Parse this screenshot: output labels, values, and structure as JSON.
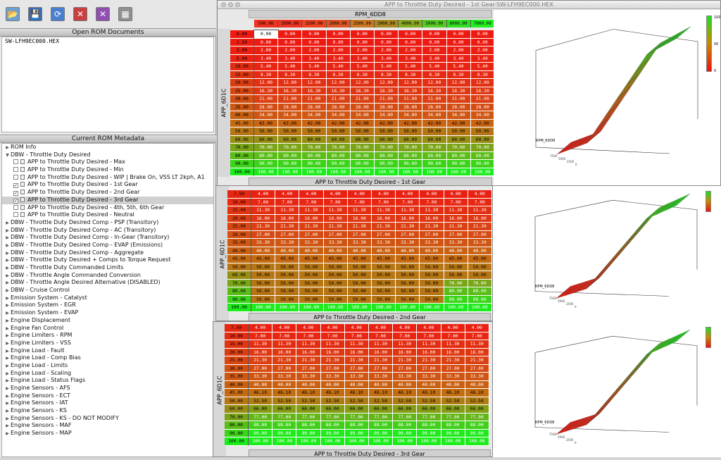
{
  "left_panel": {
    "toolbar": [
      {
        "name": "open-rom-icon",
        "glyph": "📂",
        "color": "#6ea0d0"
      },
      {
        "name": "save-rom-icon",
        "glyph": "💾",
        "color": "#3a6cb8"
      },
      {
        "name": "refresh-icon",
        "glyph": "⟳",
        "color": "#4a7fd0"
      },
      {
        "name": "close-rom-icon",
        "glyph": "✕",
        "color": "#c84040"
      },
      {
        "name": "close-all-icon",
        "glyph": "✕",
        "color": "#9050b0"
      },
      {
        "name": "chip-icon",
        "glyph": "▦",
        "color": "#909090"
      }
    ],
    "open_header": "Open ROM Documents",
    "open_files": [
      "SW-LFH9EC000.HEX"
    ],
    "meta_header": "Current ROM Metadata",
    "tree": [
      {
        "label": "ROM Info",
        "level": 0,
        "tw": "▶"
      },
      {
        "label": "DBW - Throttle Duty Desired",
        "level": 0,
        "tw": "▼"
      },
      {
        "label": "APP to Throttle Duty Desired - Max",
        "level": 1,
        "ck": ""
      },
      {
        "label": "APP to Throttle Duty Desired - Min",
        "level": 1,
        "ck": ""
      },
      {
        "label": "APP to Throttle Duty Desired - WIP | Brake On, VSS LT 2kph, A1",
        "level": 1,
        "ck": ""
      },
      {
        "label": "APP to Throttle Duty Desired - 1st Gear",
        "level": 1,
        "ck": "✓"
      },
      {
        "label": "APP to Throttle Duty Desired - 2nd Gear",
        "level": 1,
        "ck": "✓"
      },
      {
        "label": "APP to Throttle Duty Desired - 3rd Gear",
        "level": 1,
        "ck": "✓",
        "sel": true
      },
      {
        "label": "APP to Throttle Duty Desired - 4th, 5th, 6th Gear",
        "level": 1,
        "ck": ""
      },
      {
        "label": "APP to Throttle Duty Desired - Neutral",
        "level": 1,
        "ck": ""
      },
      {
        "label": "DBW - Throttle Duty Desired Comp - PSP (Transitory)",
        "level": 0,
        "tw": "▶"
      },
      {
        "label": "DBW - Throttle Duty Desired Comp - AC (Transitory)",
        "level": 0,
        "tw": "▶"
      },
      {
        "label": "DBW - Throttle Duty Desired Comp - In-Gear (Transitory)",
        "level": 0,
        "tw": "▶"
      },
      {
        "label": "DBW - Throttle Duty Desired Comp - EVAP (Emissions)",
        "level": 0,
        "tw": "▶"
      },
      {
        "label": "DBW - Throttle Duty Desired Comp - Aggregate",
        "level": 0,
        "tw": "▶"
      },
      {
        "label": "DBW - Throttle Duty Desired + Comps to Torque Request",
        "level": 0,
        "tw": "▶"
      },
      {
        "label": "DBW - Throttle Duty Commanded Limits",
        "level": 0,
        "tw": "▶"
      },
      {
        "label": "DBW - Throttle Angle Commanded Conversion",
        "level": 0,
        "tw": "▶"
      },
      {
        "label": "DBW - Throttle Angle Desired Alternative (DISABLED)",
        "level": 0,
        "tw": "▶"
      },
      {
        "label": "DBW - Cruise Control",
        "level": 0,
        "tw": "▶"
      },
      {
        "label": "Emission System - Catalyst",
        "level": 0,
        "tw": "▶"
      },
      {
        "label": "Emission System - EGR",
        "level": 0,
        "tw": "▶"
      },
      {
        "label": "Emission System - EVAP",
        "level": 0,
        "tw": "▶"
      },
      {
        "label": "Engine Displacement",
        "level": 0,
        "tw": "▶"
      },
      {
        "label": "Engine Fan Control",
        "level": 0,
        "tw": "▶"
      },
      {
        "label": "Engine Limiters - RPM",
        "level": 0,
        "tw": "▶"
      },
      {
        "label": "Engine Limiters - VSS",
        "level": 0,
        "tw": "▶"
      },
      {
        "label": "Engine Load - Fault",
        "level": 0,
        "tw": "▶"
      },
      {
        "label": "Engine Load - Comp Bias",
        "level": 0,
        "tw": "▶"
      },
      {
        "label": "Engine Load - Limits",
        "level": 0,
        "tw": "▶"
      },
      {
        "label": "Engine Load - Scaling",
        "level": 0,
        "tw": "▶"
      },
      {
        "label": "Engine Load - Status Flags",
        "level": 0,
        "tw": "▶"
      },
      {
        "label": "Engine Sensors - AFS",
        "level": 0,
        "tw": "▶"
      },
      {
        "label": "Engine Sensors - ECT",
        "level": 0,
        "tw": "▶"
      },
      {
        "label": "Engine Sensors - IAT",
        "level": 0,
        "tw": "▶"
      },
      {
        "label": "Engine Sensors - KS",
        "level": 0,
        "tw": "▶"
      },
      {
        "label": "Engine Sensors - KS - DO NOT MODIFY",
        "level": 0,
        "tw": "▶"
      },
      {
        "label": "Engine Sensors - MAF",
        "level": 0,
        "tw": "▶"
      },
      {
        "label": "Engine Sensors - MAP",
        "level": 0,
        "tw": "▶"
      }
    ]
  },
  "windows": {
    "w1": {
      "title": "APP to Throttle Duty Desired - 1st Gear-SW-LFH9EC000.HEX",
      "x_axis_name": "RPM_6DD8",
      "y_axis_name": "APP_6D1C",
      "caption": "APP to Throttle Duty Desired - 1st Gear",
      "rpm": [
        "500.00",
        "1000.00",
        "1500.00",
        "2000.00",
        "2500.00",
        "3000.00",
        "4000.00",
        "5000.00",
        "6000.00",
        "7000.00"
      ],
      "rows": [
        [
          "0.00",
          "0.00"
        ],
        [
          "1.50",
          "0.00"
        ],
        [
          "3.00",
          "2.00"
        ],
        [
          "5.00",
          "3.40"
        ],
        [
          "10.00",
          "5.40"
        ],
        [
          "15.00",
          "8.30"
        ],
        [
          "20.00",
          "12.00"
        ],
        [
          "25.00",
          "16.30"
        ],
        [
          "30.00",
          "21.00"
        ],
        [
          "35.00",
          "28.00"
        ],
        [
          "40.00",
          "34.00"
        ],
        [
          "45.00",
          "42.00"
        ],
        [
          "50.00",
          "50.00"
        ],
        [
          "60.00",
          "60.00"
        ],
        [
          "70.00",
          "70.00"
        ],
        [
          "80.00",
          "80.00"
        ],
        [
          "90.00",
          "90.00"
        ],
        [
          "100.00",
          "100.00"
        ]
      ],
      "legend": [
        "100",
        "50",
        "0"
      ]
    },
    "w2": {
      "y_axis_name": "APP_6D1C",
      "caption": "APP to Throttle Duty Desired - 2nd Gear",
      "rows": [
        [
          "7.50",
          "4.00"
        ],
        [
          "10.00",
          "7.00"
        ],
        [
          "15.00",
          "11.30"
        ],
        [
          "20.00",
          "16.00"
        ],
        [
          "25.00",
          "21.30"
        ],
        [
          "30.00",
          "27.00"
        ],
        [
          "35.00",
          "33.30"
        ],
        [
          "40.00",
          "40.00"
        ],
        [
          "45.00",
          "45.00"
        ],
        [
          "50.00",
          "50.00"
        ],
        [
          "60.00",
          "50.00"
        ],
        [
          "70.00",
          "50.00"
        ],
        [
          "80.00",
          "50.00"
        ],
        [
          "90.00",
          "50.00"
        ]
      ],
      "last_row": [
        "100.00",
        "100.00"
      ],
      "green_from_col": 8,
      "green_values": [
        "70.00",
        "80.00",
        "90.00"
      ]
    },
    "w3": {
      "y_axis_name": "APP_6D1C",
      "caption": "APP to Throttle Duty Desired - 3rd Gear",
      "rows": [
        [
          "7.50",
          "4.00"
        ],
        [
          "10.00",
          "7.00"
        ],
        [
          "15.00",
          "11.30"
        ],
        [
          "20.00",
          "16.00"
        ],
        [
          "25.00",
          "21.30"
        ],
        [
          "30.00",
          "27.00"
        ],
        [
          "35.00",
          "33.30"
        ],
        [
          "40.00",
          "40.00"
        ],
        [
          "45.00",
          "46.10"
        ],
        [
          "50.00",
          "52.50"
        ],
        [
          "60.00",
          "66.00"
        ],
        [
          "70.00",
          "77.00"
        ],
        [
          "80.00",
          "88.00"
        ],
        [
          "90.00",
          "99.00"
        ],
        [
          "100.00",
          "100.00"
        ]
      ]
    },
    "plot_labels": {
      "rpm_axis": "RPM_6DD8",
      "ticks": [
        "7500",
        "5000",
        "2500",
        "0"
      ]
    }
  },
  "colors": {
    "red": "#ee1a12",
    "green": "#22ee22",
    "selected_cell": "#ffffff"
  }
}
